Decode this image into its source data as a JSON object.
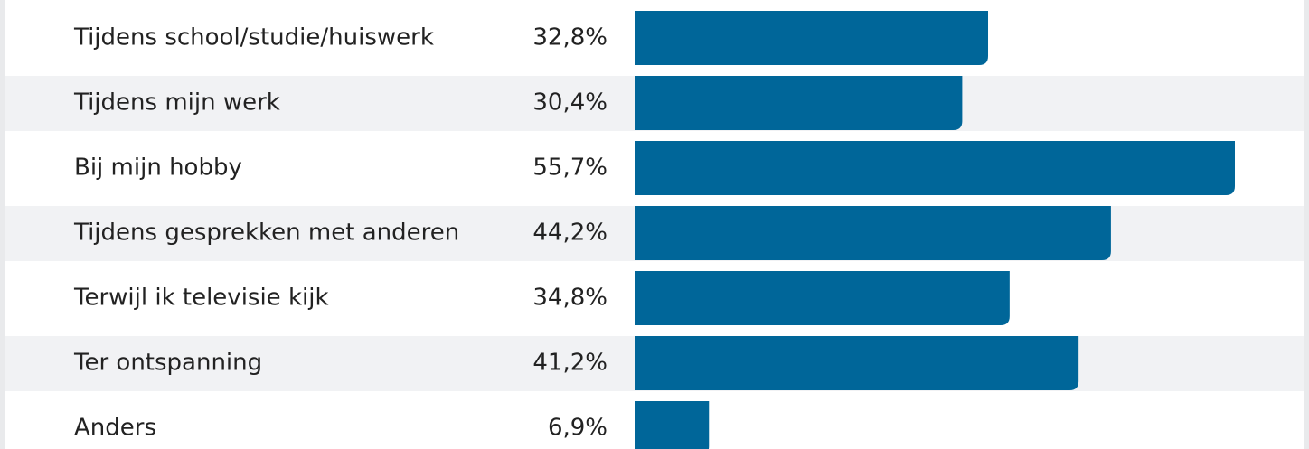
{
  "chart_data": {
    "type": "bar",
    "orientation": "horizontal",
    "color": "#006699",
    "categories": [
      "Tijdens school/studie/huiswerk",
      "Tijdens mijn werk",
      "Bij mijn hobby",
      "Tijdens gesprekken met anderen",
      "Terwijl ik televisie kijk",
      "Ter ontspanning",
      "Anders"
    ],
    "values": [
      32.8,
      30.4,
      55.7,
      44.2,
      34.8,
      41.2,
      6.9
    ],
    "value_labels": [
      "32,8%",
      "30,4%",
      "55,7%",
      "44,2%",
      "34,8%",
      "41,2%",
      "6,9%"
    ]
  }
}
